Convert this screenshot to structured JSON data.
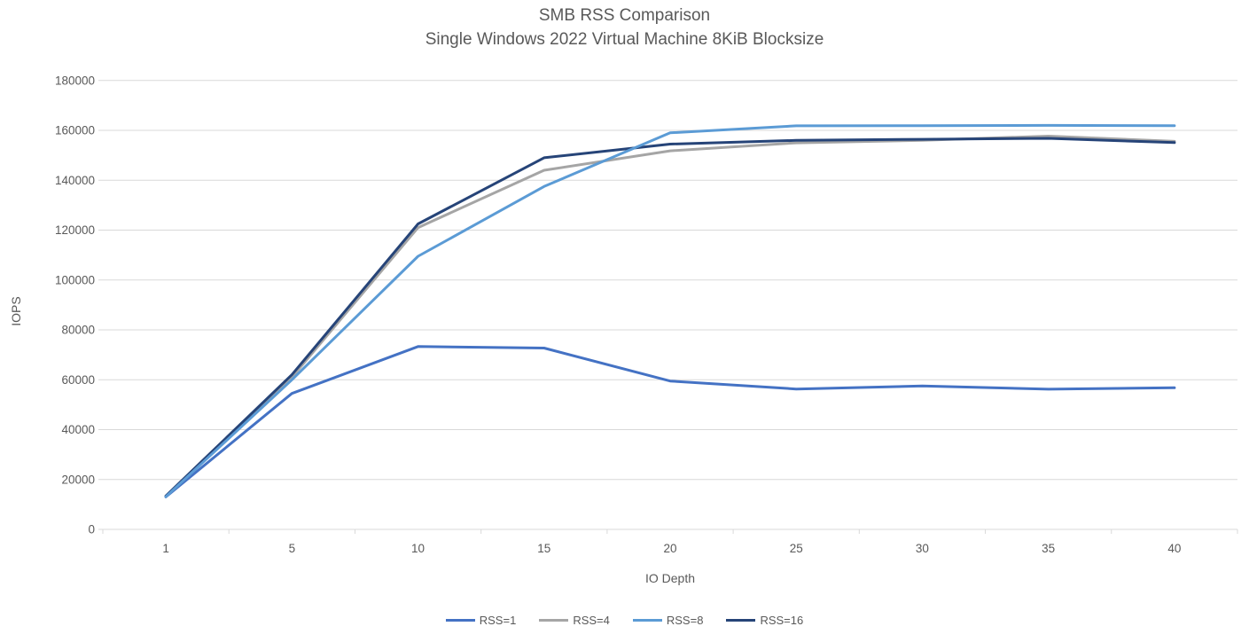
{
  "chart_data": {
    "type": "line",
    "title": "SMB RSS Comparison",
    "subtitle": "Single Windows 2022 Virtual Machine 8KiB Blocksize",
    "xlabel": "IO Depth",
    "ylabel": "IOPS",
    "categories": [
      1,
      5,
      10,
      15,
      20,
      25,
      30,
      35,
      40
    ],
    "series": [
      {
        "name": "RSS=1",
        "color": "#4472C4",
        "values": [
          13000,
          54500,
          73300,
          72700,
          59500,
          56300,
          57500,
          56200,
          56800
        ]
      },
      {
        "name": "RSS=4",
        "color": "#A5A5A5",
        "values": [
          13200,
          61000,
          121000,
          144000,
          151800,
          155000,
          156000,
          157700,
          155600
        ]
      },
      {
        "name": "RSS=8",
        "color": "#5B9BD5",
        "values": [
          13100,
          60000,
          109500,
          137500,
          159000,
          161800,
          161900,
          162000,
          161900
        ]
      },
      {
        "name": "RSS=16",
        "color": "#264478",
        "values": [
          13400,
          62000,
          122500,
          149000,
          154500,
          156000,
          156400,
          156800,
          155100
        ]
      }
    ],
    "ylim": [
      0,
      180000
    ],
    "ytick_step": 20000,
    "ytick_labels": [
      "0",
      "20000",
      "40000",
      "60000",
      "80000",
      "100000",
      "120000",
      "140000",
      "160000",
      "180000"
    ],
    "xtick_labels": [
      "1",
      "5",
      "10",
      "15",
      "20",
      "25",
      "30",
      "35",
      "40"
    ],
    "grid": "horizontal",
    "legend_position": "bottom",
    "draw_order": [
      0,
      1,
      3,
      2
    ]
  },
  "colors": {
    "background": "#FFFFFF",
    "text": "#595959",
    "gridline": "#D9D9D9",
    "axis_line": "#D9D9D9"
  }
}
